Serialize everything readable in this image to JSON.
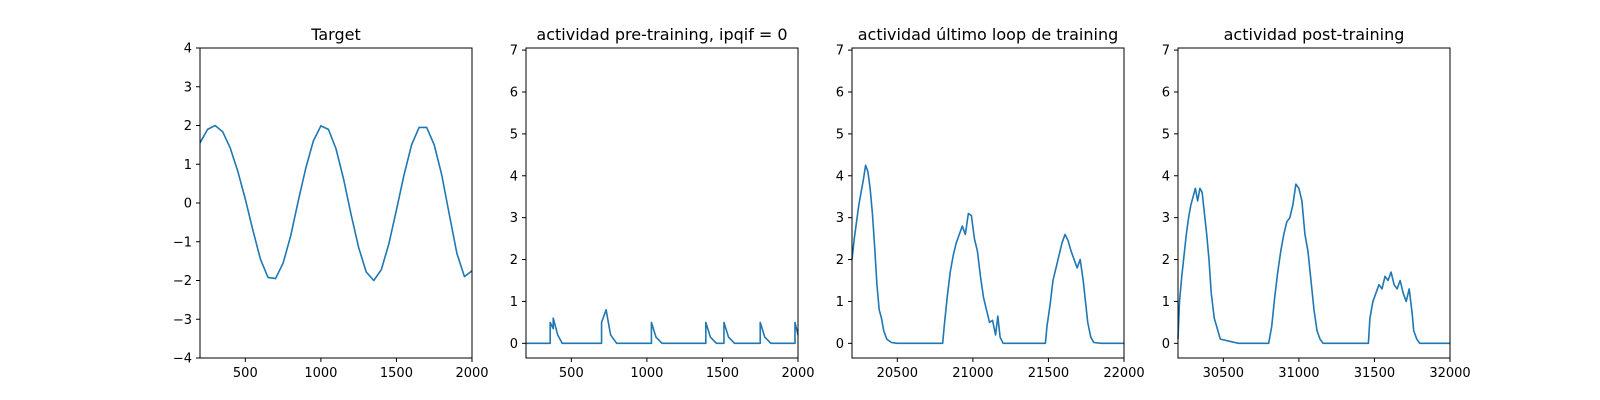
{
  "chart_data": [
    {
      "type": "line",
      "title": "Target",
      "xlabel": "",
      "ylabel": "",
      "xlim": [
        200,
        2000
      ],
      "ylim": [
        -4,
        4
      ],
      "xticks": [
        500,
        1000,
        1500,
        2000
      ],
      "yticks": [
        -4,
        -3,
        -2,
        -1,
        0,
        1,
        2,
        3,
        4
      ],
      "grid": false,
      "color": "#1f77b4",
      "series": [
        {
          "x": [
            200,
            250,
            300,
            350,
            400,
            450,
            500,
            550,
            600,
            650,
            700,
            750,
            800,
            850,
            900,
            950,
            1000,
            1050,
            1100,
            1150,
            1200,
            1250,
            1300,
            1350,
            1400,
            1450,
            1500,
            1550,
            1600,
            1650,
            1700,
            1750,
            1800,
            1850,
            1900,
            1950,
            2000
          ],
          "y": [
            1.55,
            1.9,
            2.0,
            1.84,
            1.42,
            0.82,
            0.1,
            -0.7,
            -1.45,
            -1.92,
            -1.95,
            -1.55,
            -0.85,
            0.05,
            0.9,
            1.6,
            1.99,
            1.9,
            1.4,
            0.62,
            -0.3,
            -1.15,
            -1.78,
            -2.0,
            -1.72,
            -1.05,
            -0.18,
            0.72,
            1.5,
            1.95,
            1.95,
            1.5,
            0.72,
            -0.3,
            -1.3,
            -1.9,
            -1.75
          ]
        }
      ]
    },
    {
      "type": "line",
      "title": "actividad pre-training, ipqif = 0",
      "xlabel": "",
      "ylabel": "",
      "xlim": [
        200,
        2000
      ],
      "ylim": [
        -0.35,
        7.05
      ],
      "xticks": [
        500,
        1000,
        1500,
        2000
      ],
      "yticks": [
        0,
        1,
        2,
        3,
        4,
        5,
        6,
        7
      ],
      "grid": false,
      "color": "#1f77b4",
      "series": [
        {
          "x": [
            200,
            360,
            360,
            380,
            380,
            410,
            440,
            700,
            700,
            730,
            760,
            800,
            1030,
            1030,
            1060,
            1100,
            1390,
            1390,
            1420,
            1460,
            1510,
            1510,
            1540,
            1580,
            1750,
            1750,
            1780,
            1820,
            1980,
            1980,
            2000
          ],
          "y": [
            0,
            0,
            0.5,
            0.35,
            0.6,
            0.2,
            0,
            0,
            0.5,
            0.8,
            0.2,
            0,
            0,
            0.5,
            0.15,
            0,
            0,
            0.5,
            0.15,
            0,
            0,
            0.5,
            0.15,
            0,
            0,
            0.5,
            0.15,
            0,
            0,
            0.5,
            0.2
          ]
        }
      ]
    },
    {
      "type": "line",
      "title": "actividad último loop de training",
      "xlabel": "",
      "ylabel": "",
      "xlim": [
        20200,
        22000
      ],
      "ylim": [
        -0.35,
        7.05
      ],
      "xticks": [
        20500,
        21000,
        21500,
        22000
      ],
      "yticks": [
        0,
        1,
        2,
        3,
        4,
        5,
        6,
        7
      ],
      "grid": false,
      "color": "#1f77b4",
      "series": [
        {
          "x": [
            20200,
            20215,
            20230,
            20245,
            20260,
            20275,
            20290,
            20305,
            20320,
            20335,
            20350,
            20365,
            20380,
            20395,
            20410,
            20430,
            20460,
            20500,
            20600,
            20700,
            20800,
            20810,
            20830,
            20850,
            20870,
            20890,
            20910,
            20930,
            20950,
            20970,
            20990,
            21010,
            21030,
            21050,
            21070,
            21090,
            21110,
            21130,
            21150,
            21165,
            21180,
            21200,
            21300,
            21400,
            21480,
            21490,
            21510,
            21530,
            21550,
            21570,
            21590,
            21610,
            21630,
            21650,
            21670,
            21690,
            21710,
            21730,
            21745,
            21760,
            21780,
            21800,
            21850,
            21900,
            22000
          ],
          "y": [
            2.0,
            2.5,
            2.9,
            3.3,
            3.6,
            3.9,
            4.25,
            4.1,
            3.7,
            3.1,
            2.3,
            1.4,
            0.8,
            0.6,
            0.3,
            0.1,
            0.02,
            0,
            0,
            0,
            0,
            0.4,
            1.1,
            1.7,
            2.1,
            2.4,
            2.6,
            2.8,
            2.6,
            3.1,
            3.05,
            2.5,
            2.2,
            1.6,
            1.1,
            0.8,
            0.5,
            0.55,
            0.2,
            0.65,
            0.15,
            0,
            0,
            0,
            0,
            0.4,
            0.9,
            1.5,
            1.8,
            2.1,
            2.4,
            2.6,
            2.45,
            2.2,
            2.0,
            1.8,
            2.0,
            1.5,
            1.0,
            0.5,
            0.15,
            0.02,
            0,
            0,
            0
          ]
        }
      ]
    },
    {
      "type": "line",
      "title": "actividad post-training",
      "xlabel": "",
      "ylabel": "",
      "xlim": [
        30200,
        32000
      ],
      "ylim": [
        -0.35,
        7.05
      ],
      "xticks": [
        30500,
        31000,
        31500,
        32000
      ],
      "yticks": [
        0,
        1,
        2,
        3,
        4,
        5,
        6,
        7
      ],
      "grid": false,
      "color": "#1f77b4",
      "series": [
        {
          "x": [
            30200,
            30210,
            30225,
            30240,
            30255,
            30270,
            30285,
            30300,
            30315,
            30330,
            30345,
            30360,
            30375,
            30390,
            30405,
            30420,
            30440,
            30480,
            30600,
            30800,
            30820,
            30840,
            30860,
            30880,
            30900,
            30920,
            30940,
            30960,
            30980,
            31000,
            31020,
            31040,
            31060,
            31080,
            31100,
            31120,
            31140,
            31160,
            31200,
            31300,
            31400,
            31460,
            31470,
            31490,
            31510,
            31530,
            31550,
            31570,
            31590,
            31610,
            31630,
            31650,
            31670,
            31690,
            31710,
            31730,
            31750,
            31760,
            31780,
            31800,
            31850,
            32000
          ],
          "y": [
            0.1,
            1.0,
            1.6,
            2.1,
            2.6,
            3.0,
            3.3,
            3.5,
            3.7,
            3.4,
            3.7,
            3.6,
            3.1,
            2.6,
            2.0,
            1.2,
            0.6,
            0.1,
            0,
            0,
            0.4,
            1.1,
            1.7,
            2.2,
            2.6,
            2.9,
            3.0,
            3.3,
            3.8,
            3.7,
            3.4,
            2.6,
            2.2,
            1.5,
            0.8,
            0.3,
            0.1,
            0,
            0,
            0,
            0,
            0,
            0.6,
            1.0,
            1.2,
            1.4,
            1.3,
            1.6,
            1.5,
            1.7,
            1.4,
            1.3,
            1.5,
            1.2,
            1.0,
            1.3,
            0.7,
            0.3,
            0.1,
            0,
            0,
            0
          ]
        }
      ]
    }
  ]
}
